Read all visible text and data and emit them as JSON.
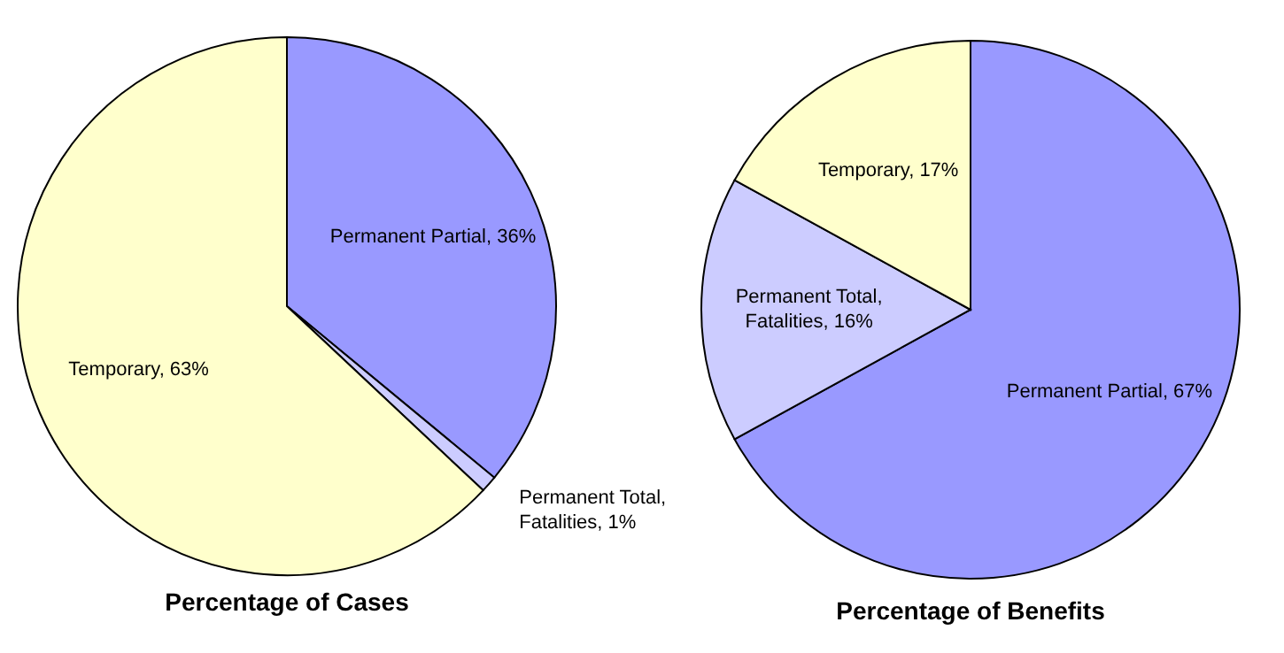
{
  "chart_data": [
    {
      "type": "pie",
      "title": "Percentage of Cases",
      "categories": [
        "Permanent Partial",
        "Permanent Total, Fatalities",
        "Temporary"
      ],
      "values": [
        36,
        1,
        63
      ],
      "colors": [
        "#9999ff",
        "#ccccff",
        "#ffffcc"
      ],
      "value_labels": [
        "36%",
        "1%",
        "63%"
      ]
    },
    {
      "type": "pie",
      "title": "Percentage of Benefits",
      "categories": [
        "Permanent Partial",
        "Permanent Total, Fatalities",
        "Temporary"
      ],
      "values": [
        67,
        16,
        17
      ],
      "colors": [
        "#9999ff",
        "#ccccff",
        "#ffffcc"
      ],
      "value_labels": [
        "67%",
        "16%",
        "17%"
      ]
    }
  ]
}
